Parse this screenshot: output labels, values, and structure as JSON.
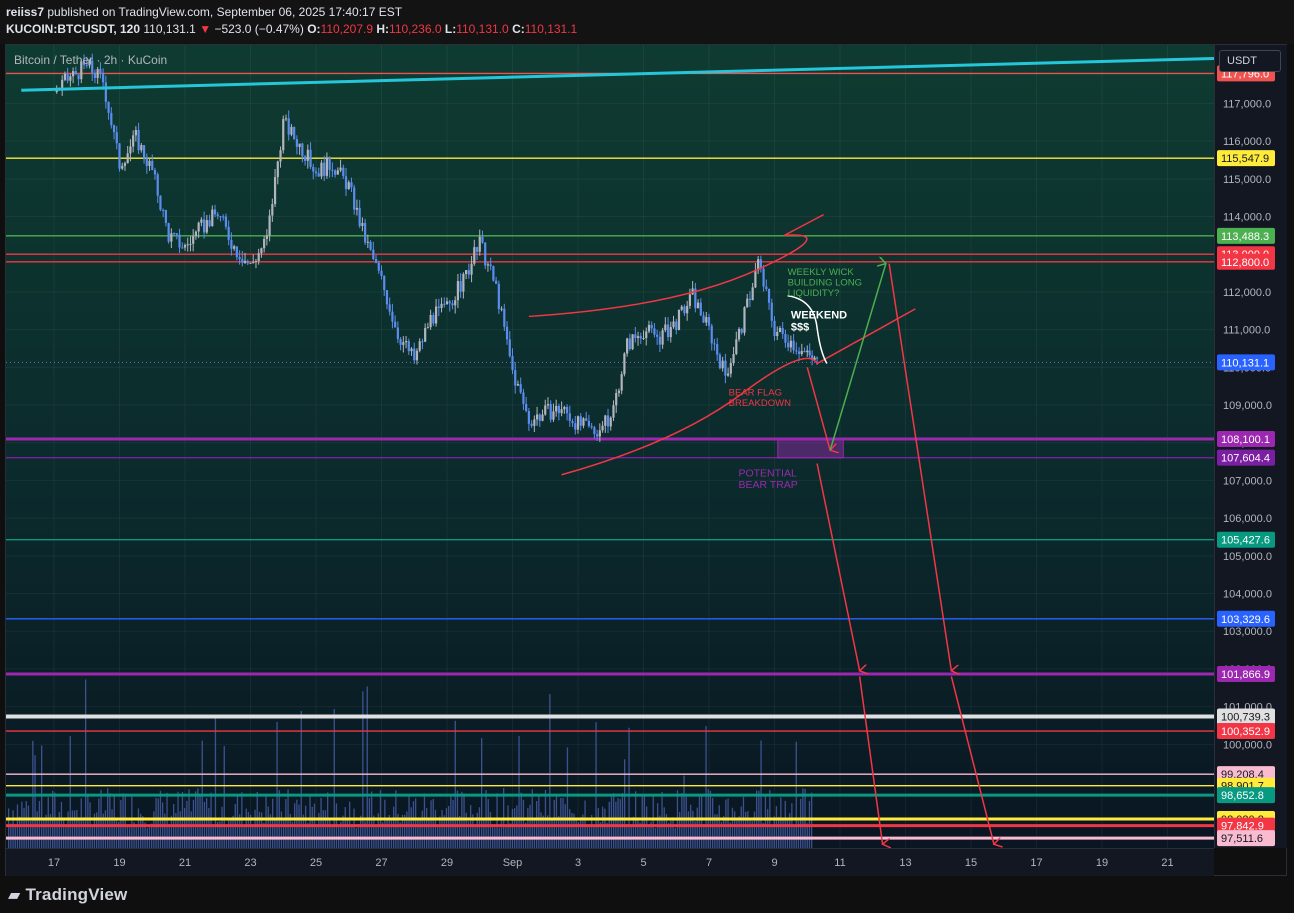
{
  "header": {
    "publisher_user": "reiiss7",
    "publisher_rest": " published on TradingView.com, September 06, 2025 17:40:17 EST",
    "symbol": "KUCOIN:BTCUSDT, 120",
    "last": "110,131.1",
    "change_arrow": "▼",
    "change": "−523.0 (−0.47%)",
    "o_label": "O:",
    "o_value": "110,207.9",
    "h_label": "H:",
    "h_value": "110,236.0",
    "l_label": "L:",
    "l_value": "110,131.0",
    "c_label": "C:",
    "c_value": "110,131.1"
  },
  "chart_title": "Bitcoin / Tether · 2h · KuCoin",
  "currency_button": "USDT",
  "footer_logo": "TradingView",
  "chart_data": {
    "type": "candlestick",
    "timeframe": "2h",
    "x_ticks": [
      "17",
      "19",
      "21",
      "23",
      "25",
      "27",
      "29",
      "Sep",
      "3",
      "5",
      "7",
      "9",
      "11",
      "13",
      "15",
      "17",
      "19",
      "21"
    ],
    "y_ticks": [
      117000,
      116000,
      115000,
      114000,
      113000,
      112000,
      111000,
      110000,
      109000,
      108000,
      107000,
      106000,
      105000,
      104000,
      103000,
      102000,
      101000,
      100000
    ],
    "y_tick_labels": [
      "117,000.0",
      "116,000.0",
      "115,000.0",
      "114,000.0",
      "113,000.0",
      "112,000.0",
      "111,000.0",
      "110,000.0",
      "109,000.0",
      "108,000.0",
      "107,000.0",
      "106,000.0",
      "105,000.0",
      "104,000.0",
      "103,000.0",
      "102,000.0",
      "101,000.0",
      "100,000.0"
    ],
    "ylim": [
      97250,
      118550
    ],
    "xlim": [
      0,
      37
    ],
    "price_path": [
      [
        0.0,
        117300
      ],
      [
        0.5,
        117700
      ],
      [
        1.0,
        118000
      ],
      [
        1.5,
        117600
      ],
      [
        2.0,
        115400
      ],
      [
        2.5,
        116100
      ],
      [
        3.0,
        115200
      ],
      [
        3.5,
        113500
      ],
      [
        4.0,
        113200
      ],
      [
        4.5,
        113700
      ],
      [
        5.0,
        114100
      ],
      [
        5.5,
        113200
      ],
      [
        6.0,
        112700
      ],
      [
        6.5,
        113400
      ],
      [
        7.0,
        116500
      ],
      [
        7.5,
        115900
      ],
      [
        8.0,
        115200
      ],
      [
        8.5,
        115400
      ],
      [
        9.0,
        114800
      ],
      [
        9.5,
        113400
      ],
      [
        10.0,
        112300
      ],
      [
        10.5,
        110900
      ],
      [
        11.0,
        110200
      ],
      [
        11.5,
        111300
      ],
      [
        12.0,
        111600
      ],
      [
        12.5,
        112300
      ],
      [
        13.0,
        113300
      ],
      [
        13.5,
        112100
      ],
      [
        14.0,
        109900
      ],
      [
        14.5,
        108600
      ],
      [
        15.0,
        108800
      ],
      [
        15.5,
        108900
      ],
      [
        16.0,
        108500
      ],
      [
        16.5,
        108300
      ],
      [
        17.0,
        108600
      ],
      [
        17.5,
        110600
      ],
      [
        18.0,
        111000
      ],
      [
        18.5,
        110800
      ],
      [
        19.0,
        111200
      ],
      [
        19.5,
        111900
      ],
      [
        20.0,
        111000
      ],
      [
        20.5,
        109800
      ],
      [
        21.0,
        111100
      ],
      [
        21.5,
        112800
      ],
      [
        22.0,
        111000
      ],
      [
        22.5,
        110700
      ],
      [
        23.0,
        110300
      ],
      [
        23.3,
        110131
      ]
    ],
    "volume_note": "volume histogram bars along the bottom",
    "horizontal_levels": [
      {
        "value": 117796.0,
        "label": "117,796.0",
        "color": "#ef5350"
      },
      {
        "value": 115547.9,
        "label": "115,547.9",
        "color": "#ffeb3b"
      },
      {
        "value": 113488.3,
        "label": "113,488.3",
        "color": "#4caf50"
      },
      {
        "value": 113000.0,
        "label": "113,000.0",
        "color": "#f23645"
      },
      {
        "value": 112800.0,
        "label": "112,800.0",
        "color": "#f23645"
      },
      {
        "value": 110131.1,
        "label": "110,131.1",
        "color": "#2962ff"
      },
      {
        "value": 108100.1,
        "label": "108,100.1",
        "color": "#9c27b0"
      },
      {
        "value": 107604.4,
        "label": "107,604.4",
        "color": "#7b1fa2"
      },
      {
        "value": 105427.6,
        "label": "105,427.6",
        "color": "#089981"
      },
      {
        "value": 103329.6,
        "label": "103,329.6",
        "color": "#2962ff"
      },
      {
        "value": 101866.9,
        "label": "101,866.9",
        "color": "#9c27b0"
      },
      {
        "value": 100739.3,
        "label": "100,739.3",
        "color": "#e0e0e0"
      },
      {
        "value": 100352.9,
        "label": "100,352.9",
        "color": "#f23645"
      },
      {
        "value": 99208.4,
        "label": "99,208.4",
        "color": "#f8bbd0"
      },
      {
        "value": 98901.7,
        "label": "98,901.7",
        "color": "#ffeb3b"
      },
      {
        "value": 98652.8,
        "label": "98,652.8",
        "color": "#089981"
      },
      {
        "value": 98020.8,
        "label": "98,020.8",
        "color": "#ffeb3b"
      },
      {
        "value": 97842.9,
        "label": "97,842.9",
        "color": "#f23645"
      },
      {
        "value": 97511.6,
        "label": "97,511.6",
        "color": "#f8bbd0"
      }
    ],
    "annotations": {
      "weekly_wick": [
        "WEEKLY WICK",
        "BUILDING LONG",
        "LIQUIDITY?"
      ],
      "weekend": [
        "WEEKEND",
        "$$$"
      ],
      "bear_flag": [
        "BEAR FLAG",
        "BREAKDOWN"
      ],
      "bear_trap": [
        "POTENTIAL",
        "BEAR TRAP"
      ]
    }
  }
}
